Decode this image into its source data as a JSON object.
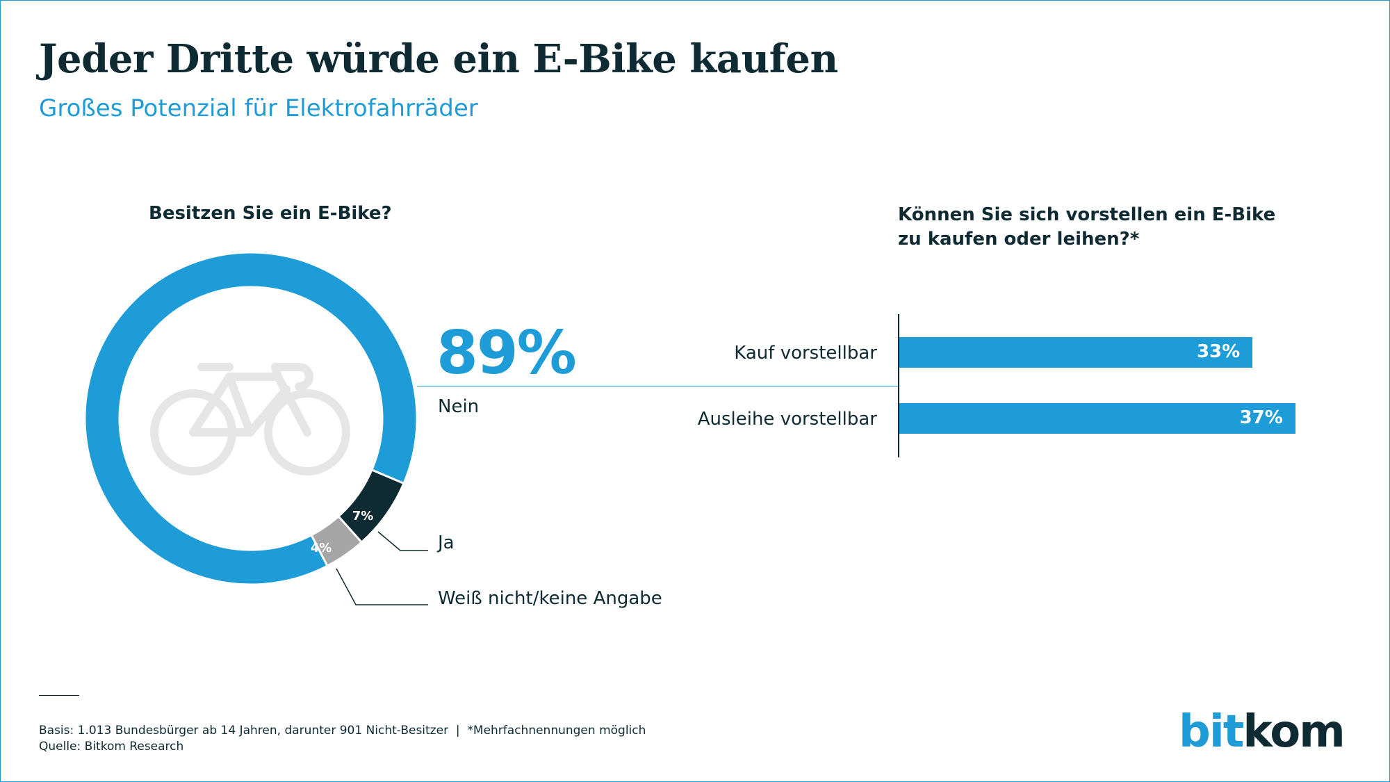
{
  "title": "Jeder Dritte würde ein E-Bike kaufen",
  "subtitle": "Großes Potenzial für Elektrofahrräder",
  "chart_data": [
    {
      "type": "pie",
      "title": "Besitzen Sie ein E-Bike?",
      "categories": [
        "Nein",
        "Ja",
        "Weiß nicht/keine Angabe"
      ],
      "values": [
        89,
        7,
        4
      ],
      "value_labels": [
        "89%",
        "7%",
        "4%"
      ],
      "colors": [
        "#1e9cd7",
        "#0e2a33",
        "#a5a5a5"
      ],
      "center_icon": "bicycle-icon"
    },
    {
      "type": "bar",
      "orientation": "horizontal",
      "title_lines": [
        "Können Sie sich vorstellen ein E-Bike",
        "zu kaufen oder leihen?*"
      ],
      "categories": [
        "Kauf vorstellbar",
        "Ausleihe vorstellbar"
      ],
      "values": [
        33,
        37
      ],
      "value_labels": [
        "33%",
        "37%"
      ],
      "xlim": [
        0,
        50
      ],
      "color": "#1e9cd7"
    }
  ],
  "footer": {
    "basis": "Basis: 1.013 Bundesbürger ab 14 Jahren, darunter 901 Nicht-Besitzer  |  *Mehrfachnennungen möglich",
    "source": "Quelle: Bitkom Research"
  },
  "logo": {
    "part1": "bit",
    "part2": "kom"
  }
}
